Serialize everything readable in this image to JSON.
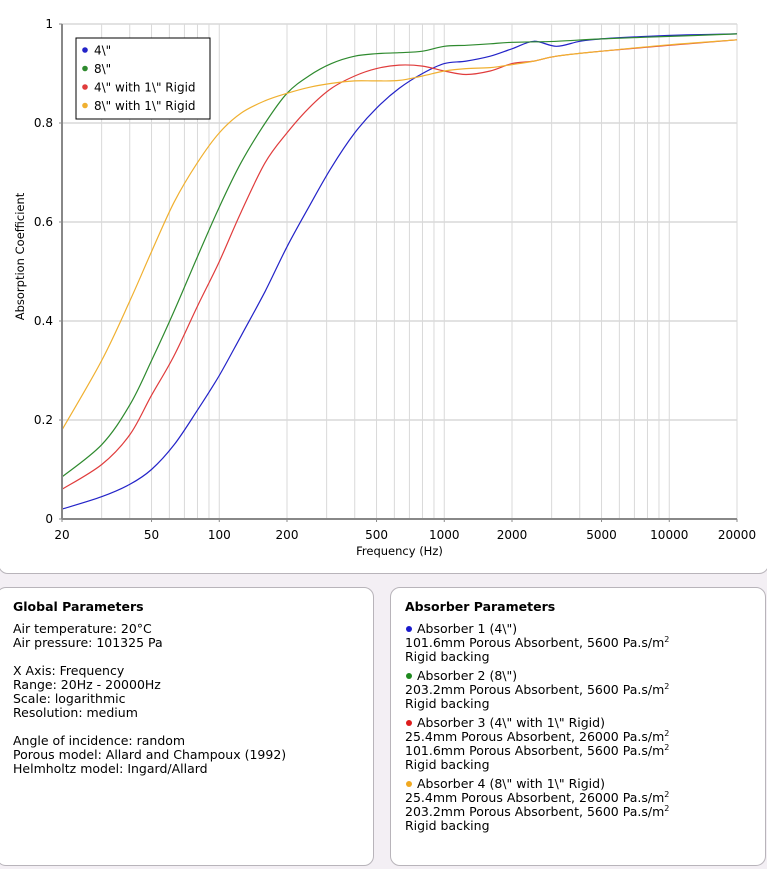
{
  "chart_data": {
    "type": "line",
    "title": "",
    "xlabel": "Frequency (Hz)",
    "ylabel": "Absorption Coefficient",
    "xscale": "log",
    "xlim": [
      20,
      20000
    ],
    "ylim": [
      0,
      1
    ],
    "x_ticks": [
      20,
      50,
      100,
      200,
      500,
      1000,
      2000,
      5000,
      10000,
      20000
    ],
    "x_tick_labels": [
      "20",
      "50",
      "100",
      "200",
      "500",
      "1000",
      "2000",
      "5000",
      "10000",
      "20000"
    ],
    "y_ticks": [
      0,
      0.2,
      0.4,
      0.6,
      0.8,
      1
    ],
    "y_tick_labels": [
      "0",
      "0.2",
      "0.4",
      "0.6",
      "0.8",
      "1"
    ],
    "grid": true,
    "legend_position": "top-left",
    "series": [
      {
        "name": "4\\\"",
        "color": "#2323c8",
        "x": [
          20,
          30,
          40,
          50,
          63,
          80,
          100,
          125,
          160,
          200,
          250,
          315,
          400,
          500,
          630,
          800,
          1000,
          1250,
          1600,
          2000,
          2500,
          3150,
          4000,
          5000,
          8000,
          12000,
          20000
        ],
        "values": [
          0.02,
          0.045,
          0.07,
          0.1,
          0.15,
          0.22,
          0.29,
          0.37,
          0.46,
          0.55,
          0.63,
          0.71,
          0.78,
          0.83,
          0.87,
          0.9,
          0.92,
          0.925,
          0.935,
          0.95,
          0.965,
          0.955,
          0.965,
          0.97,
          0.975,
          0.978,
          0.98
        ]
      },
      {
        "name": "8\\\"",
        "color": "#2e8a2e",
        "x": [
          20,
          30,
          40,
          50,
          63,
          80,
          100,
          125,
          160,
          200,
          250,
          315,
          400,
          500,
          630,
          800,
          1000,
          1250,
          1600,
          2000,
          3150,
          5000,
          10000,
          20000
        ],
        "values": [
          0.085,
          0.15,
          0.23,
          0.32,
          0.42,
          0.53,
          0.63,
          0.72,
          0.8,
          0.86,
          0.895,
          0.92,
          0.935,
          0.94,
          0.942,
          0.945,
          0.955,
          0.957,
          0.96,
          0.963,
          0.965,
          0.97,
          0.975,
          0.98
        ]
      },
      {
        "name": "4\\\" with 1\\\" Rigid",
        "color": "#e03c3c",
        "x": [
          20,
          30,
          40,
          50,
          63,
          80,
          100,
          125,
          160,
          200,
          250,
          315,
          400,
          500,
          630,
          800,
          1000,
          1250,
          1600,
          2000,
          2500,
          3150,
          5000,
          10000,
          20000
        ],
        "values": [
          0.06,
          0.11,
          0.17,
          0.25,
          0.33,
          0.43,
          0.52,
          0.62,
          0.72,
          0.78,
          0.83,
          0.87,
          0.895,
          0.91,
          0.917,
          0.915,
          0.905,
          0.898,
          0.905,
          0.92,
          0.925,
          0.935,
          0.945,
          0.957,
          0.968
        ]
      },
      {
        "name": "8\\\" with 1\\\" Rigid",
        "color": "#f0b030",
        "x": [
          20,
          30,
          40,
          50,
          63,
          80,
          100,
          125,
          160,
          200,
          250,
          315,
          400,
          500,
          630,
          800,
          1000,
          1250,
          1600,
          2000,
          2500,
          3150,
          5000,
          10000,
          20000
        ],
        "values": [
          0.18,
          0.32,
          0.44,
          0.54,
          0.64,
          0.72,
          0.78,
          0.82,
          0.845,
          0.86,
          0.872,
          0.88,
          0.885,
          0.885,
          0.886,
          0.895,
          0.905,
          0.91,
          0.912,
          0.918,
          0.925,
          0.935,
          0.945,
          0.958,
          0.968
        ]
      }
    ]
  },
  "global_parameters": {
    "title": "Global Parameters",
    "air_temperature": "Air temperature: 20°C",
    "air_pressure": "Air pressure: 101325 Pa",
    "x_axis": "X Axis: Frequency",
    "range": "Range: 20Hz - 20000Hz",
    "scale": "Scale: logarithmic",
    "resolution": "Resolution: medium",
    "angle": "Angle of incidence: random",
    "porous_model": "Porous model: Allard and Champoux (1992)",
    "helmholtz_model": "Helmholtz model: Ingard/Allard"
  },
  "absorber_parameters": {
    "title": "Absorber Parameters",
    "unit_sup": "2",
    "absorbers": [
      {
        "name": "Absorber 1 (4\\\")",
        "color": "#1a1acc",
        "layers": [
          "101.6mm Porous Absorbent, 5600 Pa.s/m"
        ],
        "backing": "Rigid backing"
      },
      {
        "name": "Absorber 2 (8\\\")",
        "color": "#1f8a1f",
        "layers": [
          "203.2mm Porous Absorbent, 5600 Pa.s/m"
        ],
        "backing": "Rigid backing"
      },
      {
        "name": "Absorber 3 (4\\\" with 1\\\" Rigid)",
        "color": "#dd1c1c",
        "layers": [
          "25.4mm Porous Absorbent, 26000 Pa.s/m",
          "101.6mm Porous Absorbent, 5600 Pa.s/m"
        ],
        "backing": "Rigid backing"
      },
      {
        "name": "Absorber 4 (8\\\" with 1\\\" Rigid)",
        "color": "#f0a820",
        "layers": [
          "25.4mm Porous Absorbent, 26000 Pa.s/m",
          "203.2mm Porous Absorbent, 5600 Pa.s/m"
        ],
        "backing": "Rigid backing"
      }
    ]
  }
}
